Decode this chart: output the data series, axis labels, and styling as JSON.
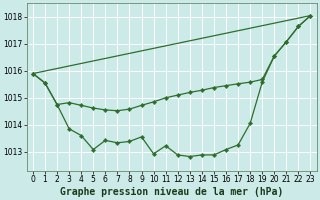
{
  "title": "Graphe pression niveau de la mer (hPa)",
  "bg_color": "#cceae8",
  "grid_color": "#ffffff",
  "line_color": "#2d6e2d",
  "xlim": [
    -0.5,
    23.5
  ],
  "ylim": [
    1012.3,
    1018.5
  ],
  "yticks": [
    1013,
    1014,
    1015,
    1016,
    1017,
    1018
  ],
  "xticks": [
    0,
    1,
    2,
    3,
    4,
    5,
    6,
    7,
    8,
    9,
    10,
    11,
    12,
    13,
    14,
    15,
    16,
    17,
    18,
    19,
    20,
    21,
    22,
    23
  ],
  "line1_x": [
    0,
    1,
    2,
    3,
    4,
    5,
    6,
    7,
    8,
    9,
    10,
    11,
    12,
    13,
    14,
    15,
    16,
    17,
    18,
    19,
    20,
    21,
    22,
    23
  ],
  "line1_y": [
    1015.9,
    1015.55,
    1014.75,
    1013.85,
    1013.6,
    1013.08,
    1013.42,
    1013.33,
    1013.38,
    1013.55,
    1012.92,
    1013.22,
    1012.88,
    1012.82,
    1012.88,
    1012.88,
    1013.08,
    1013.25,
    1014.05,
    1015.58,
    1016.55,
    1017.08,
    1017.65,
    1018.05
  ],
  "line2_x": [
    0,
    1,
    2,
    3,
    4,
    5,
    6,
    7,
    8,
    9,
    10,
    11,
    12,
    13,
    14,
    15,
    16,
    17,
    18,
    19,
    20,
    21,
    22,
    23
  ],
  "line2_y": [
    1015.9,
    1015.55,
    1014.75,
    1014.82,
    1014.72,
    1014.62,
    1014.55,
    1014.52,
    1014.58,
    1014.72,
    1014.85,
    1015.0,
    1015.1,
    1015.2,
    1015.28,
    1015.38,
    1015.45,
    1015.52,
    1015.58,
    1015.68,
    1016.55,
    1017.08,
    1017.65,
    1018.05
  ],
  "line3_x": [
    0,
    23
  ],
  "line3_y": [
    1015.9,
    1018.05
  ],
  "xlabel_fontsize": 7,
  "tick_fontsize": 5.5
}
